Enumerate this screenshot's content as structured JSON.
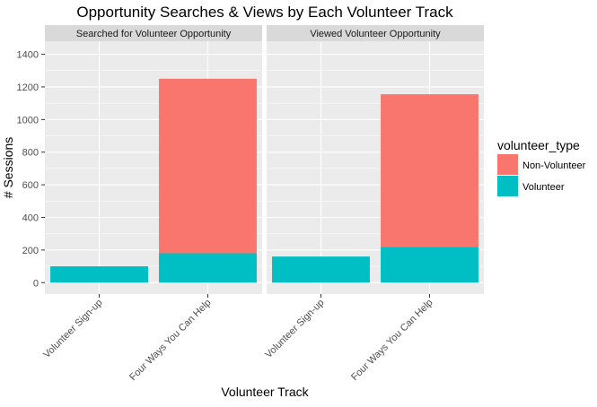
{
  "chart_data": {
    "type": "bar",
    "stacked": true,
    "title": "Opportunity Searches & Views by Each Volunteer Track",
    "xlabel": "Volunteer Track",
    "ylabel": "# Sessions",
    "ylim": [
      -70,
      1480
    ],
    "yticks": [
      0,
      200,
      400,
      600,
      800,
      1000,
      1200,
      1400
    ],
    "grid": true,
    "categories": [
      "Volunteer Sign-up",
      "Four Ways You Can Help"
    ],
    "legend": {
      "title": "volunteer_type",
      "position": "right",
      "entries": [
        {
          "label": "Non-Volunteer",
          "color": "#F8766D"
        },
        {
          "label": "Volunteer",
          "color": "#00BFC4"
        }
      ]
    },
    "panels": [
      {
        "title": "Searched for Volunteer Opportunity",
        "series": [
          {
            "name": "Volunteer",
            "color": "#00BFC4",
            "values": [
              100,
              180
            ]
          },
          {
            "name": "Non-Volunteer",
            "color": "#F8766D",
            "values": [
              0,
              1070
            ]
          }
        ]
      },
      {
        "title": "Viewed Volunteer Opportunity",
        "series": [
          {
            "name": "Volunteer",
            "color": "#00BFC4",
            "values": [
              160,
              220
            ]
          },
          {
            "name": "Non-Volunteer",
            "color": "#F8766D",
            "values": [
              0,
              935
            ]
          }
        ]
      }
    ]
  }
}
